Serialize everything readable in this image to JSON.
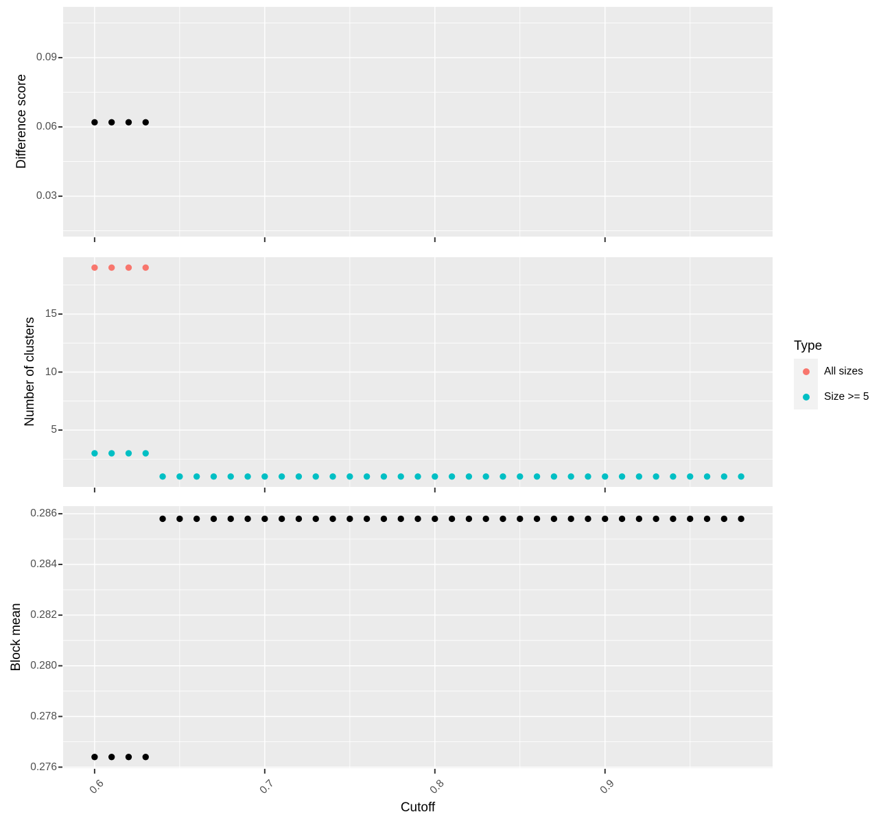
{
  "figure": {
    "x_axis": {
      "label": "Cutoff",
      "lim": [
        0.5815,
        0.9985
      ],
      "major_ticks": [
        {
          "v": 0.6,
          "label": "0.6"
        },
        {
          "v": 0.7,
          "label": "0.7"
        },
        {
          "v": 0.8,
          "label": "0.8"
        },
        {
          "v": 0.9,
          "label": "0.9"
        }
      ],
      "minor_ticks": [
        0.65,
        0.75,
        0.85,
        0.95
      ]
    },
    "legend": {
      "title": "Type",
      "items": [
        {
          "label": "All sizes",
          "color": "#F8766D"
        },
        {
          "label": "Size >= 5",
          "color": "#00BFC4"
        }
      ]
    },
    "colors": {
      "panel_bg": "#EBEBEB",
      "grid": "#FFFFFF",
      "tick_label": "#4D4D4D",
      "axis_title": "#000000",
      "tick_mark": "#333333",
      "legend_key_bg": "#F2F2F2",
      "point_default": "#000000"
    }
  },
  "chart_data": [
    {
      "type": "scatter",
      "title": "",
      "xlabel": "Cutoff",
      "ylabel": "Difference score",
      "ylim": [
        0.0125,
        0.112
      ],
      "y_major_ticks": [
        {
          "v": 0.03,
          "label": "0.03"
        },
        {
          "v": 0.06,
          "label": "0.06"
        },
        {
          "v": 0.09,
          "label": "0.09"
        }
      ],
      "y_minor_ticks": [
        0.015,
        0.045,
        0.075,
        0.105
      ],
      "series": [
        {
          "name": "Difference score",
          "color": "#000000",
          "x": [
            0.6,
            0.61,
            0.62,
            0.63
          ],
          "y": [
            0.062,
            0.062,
            0.062,
            0.062
          ]
        }
      ]
    },
    {
      "type": "scatter",
      "title": "",
      "xlabel": "Cutoff",
      "ylabel": "Number of clusters",
      "ylim": [
        0.1,
        19.9
      ],
      "y_major_ticks": [
        {
          "v": 5,
          "label": "5"
        },
        {
          "v": 10,
          "label": "10"
        },
        {
          "v": 15,
          "label": "15"
        }
      ],
      "y_minor_ticks": [
        2.5,
        7.5,
        12.5,
        17.5
      ],
      "series": [
        {
          "name": "All sizes",
          "color": "#F8766D",
          "x": [
            0.6,
            0.61,
            0.62,
            0.63
          ],
          "y": [
            19,
            19,
            19,
            19
          ]
        },
        {
          "name": "Size >= 5",
          "color": "#00BFC4",
          "x": [
            0.6,
            0.61,
            0.62,
            0.63,
            0.64,
            0.65,
            0.66,
            0.67,
            0.68,
            0.69,
            0.7,
            0.71,
            0.72,
            0.73,
            0.74,
            0.75,
            0.76,
            0.77,
            0.78,
            0.79,
            0.8,
            0.81,
            0.82,
            0.83,
            0.84,
            0.85,
            0.86,
            0.87,
            0.88,
            0.89,
            0.9,
            0.91,
            0.92,
            0.93,
            0.94,
            0.95,
            0.96,
            0.97,
            0.98
          ],
          "y": [
            3,
            3,
            3,
            3,
            1,
            1,
            1,
            1,
            1,
            1,
            1,
            1,
            1,
            1,
            1,
            1,
            1,
            1,
            1,
            1,
            1,
            1,
            1,
            1,
            1,
            1,
            1,
            1,
            1,
            1,
            1,
            1,
            1,
            1,
            1,
            1,
            1,
            1,
            1
          ]
        }
      ]
    },
    {
      "type": "scatter",
      "title": "",
      "xlabel": "Cutoff",
      "ylabel": "Block mean",
      "ylim": [
        0.27596,
        0.2863
      ],
      "y_major_ticks": [
        {
          "v": 0.276,
          "label": "0.276"
        },
        {
          "v": 0.278,
          "label": "0.278"
        },
        {
          "v": 0.28,
          "label": "0.280"
        },
        {
          "v": 0.282,
          "label": "0.282"
        },
        {
          "v": 0.284,
          "label": "0.284"
        },
        {
          "v": 0.286,
          "label": "0.286"
        }
      ],
      "y_minor_ticks": [
        0.277,
        0.279,
        0.281,
        0.283,
        0.285
      ],
      "series": [
        {
          "name": "Block mean",
          "color": "#000000",
          "x": [
            0.6,
            0.61,
            0.62,
            0.63,
            0.64,
            0.65,
            0.66,
            0.67,
            0.68,
            0.69,
            0.7,
            0.71,
            0.72,
            0.73,
            0.74,
            0.75,
            0.76,
            0.77,
            0.78,
            0.79,
            0.8,
            0.81,
            0.82,
            0.83,
            0.84,
            0.85,
            0.86,
            0.87,
            0.88,
            0.89,
            0.9,
            0.91,
            0.92,
            0.93,
            0.94,
            0.95,
            0.96,
            0.97,
            0.98
          ],
          "y": [
            0.2764,
            0.2764,
            0.2764,
            0.2764,
            0.2858,
            0.2858,
            0.2858,
            0.2858,
            0.2858,
            0.2858,
            0.2858,
            0.2858,
            0.2858,
            0.2858,
            0.2858,
            0.2858,
            0.2858,
            0.2858,
            0.2858,
            0.2858,
            0.2858,
            0.2858,
            0.2858,
            0.2858,
            0.2858,
            0.2858,
            0.2858,
            0.2858,
            0.2858,
            0.2858,
            0.2858,
            0.2858,
            0.2858,
            0.2858,
            0.2858,
            0.2858,
            0.2858,
            0.2858,
            0.2858
          ]
        }
      ]
    }
  ]
}
